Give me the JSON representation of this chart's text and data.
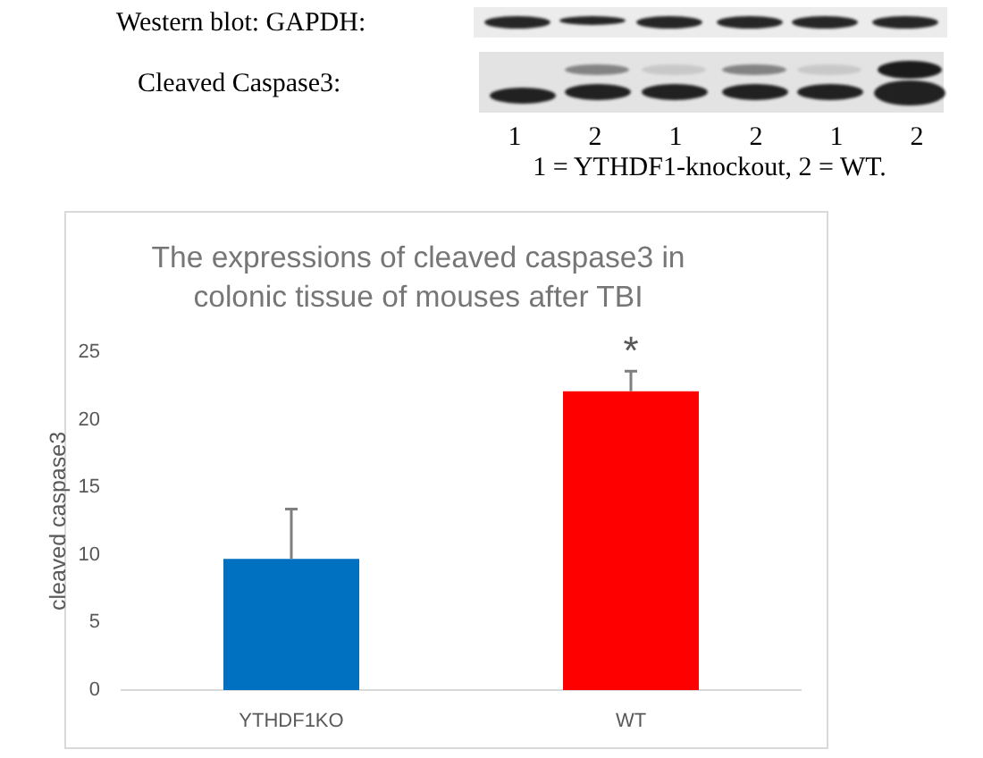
{
  "chart_data": {
    "type": "bar",
    "title": "The expressions of cleaved caspase3 in colonic tissue of mouses after TBI",
    "ylabel": "cleaved caspase3",
    "categories": [
      "YTHDF1KO",
      "WT"
    ],
    "values": [
      9.7,
      22.1
    ],
    "colors": [
      "#0070c0",
      "#ff0000"
    ],
    "errors": [
      [
        9.7,
        13.4
      ],
      [
        22.1,
        23.6
      ]
    ],
    "ylim": [
      0,
      25
    ],
    "yticks": [
      0,
      5,
      10,
      15,
      20,
      25
    ],
    "annotations": [
      "Western blot: GAPDH:",
      "Cleaved Caspase3:",
      "1",
      "2",
      "1",
      "2",
      "1",
      "2",
      "1 = YTHDF1-knockout, 2 = WT.",
      {
        "text": "*",
        "x": "WT",
        "y": 23.6
      }
    ]
  }
}
